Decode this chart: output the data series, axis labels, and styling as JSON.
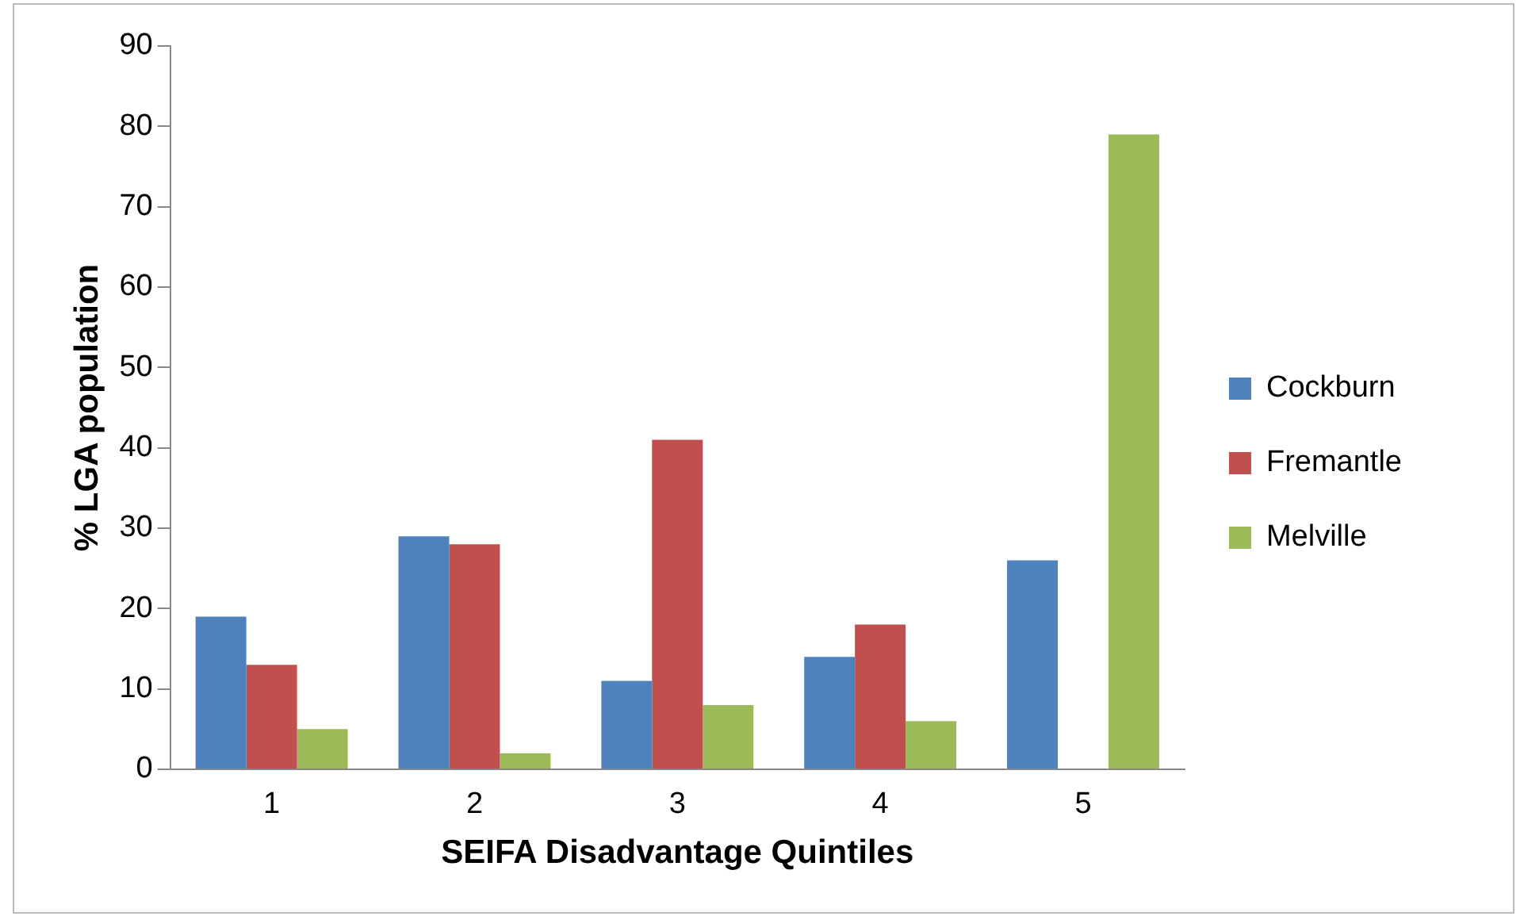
{
  "chart_data": {
    "type": "bar",
    "xlabel": "SEIFA Disadvantage Quintiles",
    "ylabel": "% LGA population",
    "categories": [
      "1",
      "2",
      "3",
      "4",
      "5"
    ],
    "series": [
      {
        "name": "Cockburn",
        "color": "#4f81bd",
        "values": [
          19,
          29,
          11,
          14,
          26
        ]
      },
      {
        "name": "Fremantle",
        "color": "#c0504d",
        "values": [
          13,
          28,
          41,
          18,
          0
        ]
      },
      {
        "name": "Melville",
        "color": "#9bbb59",
        "values": [
          5,
          2,
          8,
          6,
          79
        ]
      }
    ],
    "ylim": [
      0,
      90
    ],
    "yticks": [
      0,
      10,
      20,
      30,
      40,
      50,
      60,
      70,
      80,
      90
    ],
    "grid": false,
    "legend": "right"
  }
}
